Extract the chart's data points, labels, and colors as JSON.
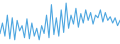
{
  "values": [
    20,
    40,
    15,
    55,
    10,
    50,
    8,
    45,
    25,
    35,
    12,
    48,
    10,
    40,
    15,
    30,
    8,
    35,
    20,
    55,
    12,
    75,
    18,
    50,
    15,
    65,
    22,
    78,
    30,
    55,
    38,
    68,
    32,
    58,
    40,
    65,
    45,
    60,
    38,
    55,
    50,
    65,
    42,
    60,
    45,
    52,
    40,
    50,
    35,
    45
  ],
  "line_color": "#4da6e0",
  "background_color": "#ffffff",
  "linewidth": 0.8
}
